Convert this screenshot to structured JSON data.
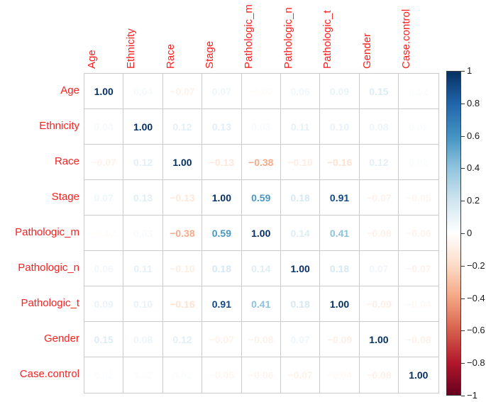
{
  "chart_data": {
    "type": "heatmap",
    "subtype": "correlation-matrix-numbers",
    "title": "",
    "variables": [
      "Age",
      "Ethnicity",
      "Race",
      "Stage",
      "Pathologic_m",
      "Pathologic_n",
      "Pathologic_t",
      "Gender",
      "Case.control"
    ],
    "matrix": [
      [
        1.0,
        0.04,
        -0.07,
        0.07,
        -0.02,
        0.06,
        0.09,
        0.15,
        0.02
      ],
      [
        0.04,
        1.0,
        0.12,
        0.13,
        0.03,
        0.11,
        0.1,
        0.08,
        0.02
      ],
      [
        -0.07,
        0.12,
        1.0,
        -0.13,
        -0.38,
        -0.1,
        -0.16,
        0.12,
        0.02
      ],
      [
        0.07,
        0.13,
        -0.13,
        1.0,
        0.59,
        0.18,
        0.91,
        -0.07,
        -0.05
      ],
      [
        -0.02,
        0.03,
        -0.38,
        0.59,
        1.0,
        0.14,
        0.41,
        -0.08,
        -0.06
      ],
      [
        0.06,
        0.11,
        -0.1,
        0.18,
        0.14,
        1.0,
        0.18,
        0.07,
        -0.07
      ],
      [
        0.09,
        0.1,
        -0.16,
        0.91,
        0.41,
        0.18,
        1.0,
        -0.09,
        -0.04
      ],
      [
        0.15,
        0.08,
        0.12,
        -0.07,
        -0.08,
        0.07,
        -0.09,
        1.0,
        -0.08
      ],
      [
        0.02,
        0.02,
        0.02,
        -0.05,
        -0.06,
        -0.07,
        -0.04,
        -0.08,
        1.0
      ]
    ],
    "value_format": "2dp",
    "colormap": {
      "name": "RdBu",
      "domain": [
        -1,
        1
      ],
      "stops": [
        "#67001F",
        "#B2182B",
        "#D6604D",
        "#F4A582",
        "#FDDBC7",
        "#FFFFFF",
        "#D1E5F0",
        "#92C5DE",
        "#4393C3",
        "#2166AC",
        "#053061"
      ]
    },
    "colorbar": {
      "position": "right",
      "tick_labels": [
        "1",
        "0.8",
        "0.6",
        "0.4",
        "0.2",
        "0",
        "−0.2",
        "−0.4",
        "−0.6",
        "−0.8",
        "−1"
      ],
      "range": [
        1,
        -1
      ]
    },
    "grid": true,
    "legend_position": "right",
    "label_color": "#FB2020",
    "grid_color": "#CBCBCB",
    "colorbar_border_color": "#3C3C3C",
    "tick_label_color": "#1A1A1A",
    "background_color": "#FFFFFF"
  }
}
